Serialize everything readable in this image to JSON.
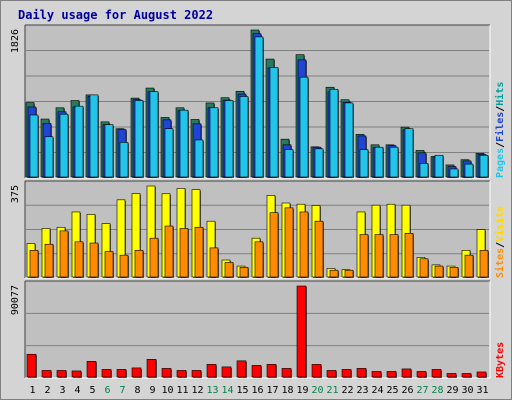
{
  "chart_data": {
    "type": "bar",
    "title": "Daily usage for August 2022",
    "categories": [
      "1",
      "2",
      "3",
      "4",
      "5",
      "6",
      "7",
      "8",
      "9",
      "10",
      "11",
      "12",
      "13",
      "14",
      "15",
      "16",
      "17",
      "18",
      "19",
      "20",
      "21",
      "22",
      "23",
      "24",
      "25",
      "26",
      "27",
      "28",
      "29",
      "30",
      "31"
    ],
    "weekend_days": [
      "6",
      "7",
      "13",
      "14",
      "20",
      "21",
      "27",
      "28"
    ],
    "panels": [
      {
        "id": "top",
        "ymax_label": "1826",
        "ymax": 1826,
        "legend": [
          "Pages",
          "Files",
          "Hits"
        ],
        "series": [
          {
            "name": "Hits",
            "color": "#267a5e",
            "values": [
              925,
              720,
              860,
              950,
              1020,
              685,
              600,
              980,
              1105,
              740,
              860,
              715,
              920,
              985,
              1065,
              1826,
              1465,
              470,
              1520,
              375,
              1115,
              960,
              530,
              400,
              400,
              620,
              330,
              255,
              150,
              215,
              295
            ]
          },
          {
            "name": "Files",
            "color": "#1f44d6",
            "values": [
              870,
              665,
              810,
              870,
              1000,
              650,
              590,
              960,
              1060,
              710,
              825,
              660,
              860,
              955,
              1030,
              1780,
              1355,
              400,
              1455,
              370,
              1060,
              930,
              510,
              365,
              390,
              585,
              300,
              250,
              130,
              200,
              280
            ]
          },
          {
            "name": "Pages",
            "color": "#22c4ea",
            "values": [
              770,
              500,
              780,
              880,
              1020,
              650,
              430,
              950,
              1060,
              600,
              830,
              460,
              860,
              950,
              1000,
              1740,
              1360,
              340,
              1240,
              350,
              1090,
              920,
              340,
              370,
              370,
              600,
              170,
              270,
              100,
              160,
              270
            ]
          }
        ]
      },
      {
        "id": "middle",
        "ymax_label": "375",
        "ymax": 375,
        "legend": [
          "Sites",
          "Visits"
        ],
        "series": [
          {
            "name": "Visits",
            "color": "#ffff00",
            "values": [
              138,
              200,
              205,
              268,
              258,
              220,
              318,
              344,
              375,
              343,
              365,
              360,
              230,
              70,
              45,
              160,
              336,
              305,
              300,
              295,
              35,
              30,
              268,
              296,
              300,
              296,
              81,
              50,
              45,
              110,
              195
            ]
          },
          {
            "name": "Sites",
            "color": "#ff8c00",
            "values": [
              110,
              135,
              190,
              145,
              140,
              105,
              90,
              110,
              160,
              210,
              200,
              205,
              120,
              60,
              40,
              145,
              265,
              285,
              268,
              230,
              28,
              28,
              175,
              175,
              175,
              180,
              75,
              45,
              40,
              90,
              110
            ]
          }
        ]
      },
      {
        "id": "bottom",
        "ymax_label": "90077",
        "ymax": 90077,
        "legend": [
          "KBytes"
        ],
        "series": [
          {
            "name": "KBytes",
            "color": "#ff0000",
            "values": [
              22500,
              6500,
              6500,
              6000,
              15500,
              7500,
              7500,
              9000,
              17500,
              8500,
              6500,
              6500,
              12500,
              10000,
              16000,
              11500,
              12500,
              8500,
              90077,
              12500,
              6500,
              7500,
              8500,
              5500,
              5500,
              8000,
              5500,
              7500,
              3500,
              3500,
              5000
            ]
          }
        ]
      }
    ]
  }
}
